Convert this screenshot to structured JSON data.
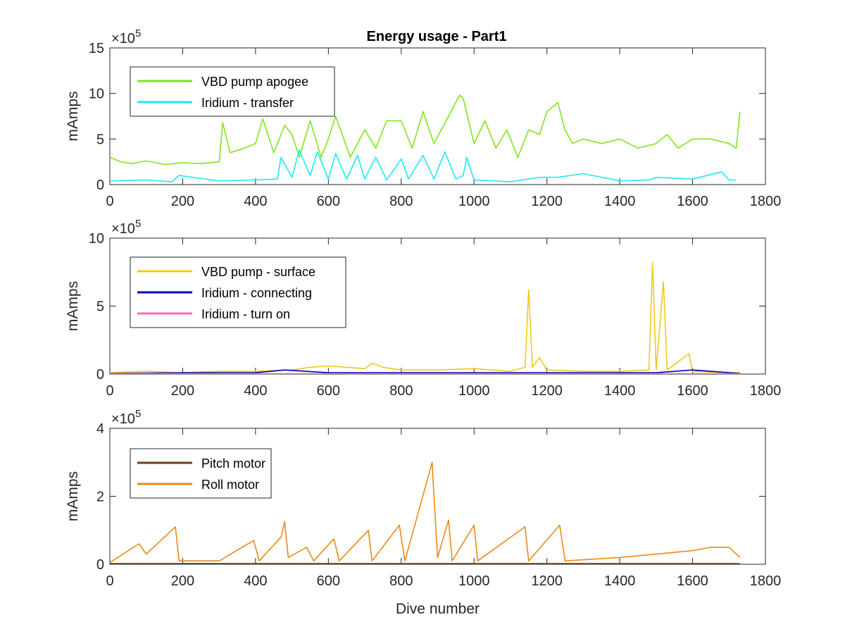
{
  "figure": {
    "title": "Energy usage - Part1"
  },
  "chart_data": [
    {
      "type": "line",
      "title": "Energy usage - Part1",
      "xlabel": "",
      "ylabel": "mAmps",
      "y_multiplier": "10",
      "y_exponent": "5",
      "xlim": [
        0,
        1800
      ],
      "ylim": [
        0,
        15
      ],
      "xticks": [
        "0",
        "200",
        "400",
        "600",
        "800",
        "1000",
        "1200",
        "1400",
        "1600",
        "1800"
      ],
      "yticks": [
        "0",
        "5",
        "10",
        "15"
      ],
      "legend": "top-left",
      "series": [
        {
          "name": "VBD pump apogee",
          "color": "#80e61a",
          "points": [
            [
              0,
              3.0
            ],
            [
              30,
              2.5
            ],
            [
              60,
              2.3
            ],
            [
              100,
              2.6
            ],
            [
              150,
              2.2
            ],
            [
              200,
              2.4
            ],
            [
              250,
              2.3
            ],
            [
              300,
              2.5
            ],
            [
              310,
              6.8
            ],
            [
              330,
              3.5
            ],
            [
              370,
              4.0
            ],
            [
              400,
              4.5
            ],
            [
              420,
              7.2
            ],
            [
              450,
              3.5
            ],
            [
              480,
              6.5
            ],
            [
              500,
              5.5
            ],
            [
              520,
              3.0
            ],
            [
              550,
              7.0
            ],
            [
              580,
              3.0
            ],
            [
              600,
              5.0
            ],
            [
              620,
              7.5
            ],
            [
              660,
              3.0
            ],
            [
              700,
              6.0
            ],
            [
              730,
              4.0
            ],
            [
              760,
              7.0
            ],
            [
              800,
              7.0
            ],
            [
              830,
              4.0
            ],
            [
              860,
              8.0
            ],
            [
              890,
              4.5
            ],
            [
              930,
              7.5
            ],
            [
              960,
              9.8
            ],
            [
              970,
              9.5
            ],
            [
              1000,
              4.5
            ],
            [
              1030,
              7.0
            ],
            [
              1060,
              4.0
            ],
            [
              1090,
              6.0
            ],
            [
              1120,
              3.0
            ],
            [
              1150,
              6.0
            ],
            [
              1180,
              5.5
            ],
            [
              1200,
              8.0
            ],
            [
              1230,
              9.0
            ],
            [
              1250,
              6.0
            ],
            [
              1270,
              4.5
            ],
            [
              1300,
              5.0
            ],
            [
              1350,
              4.5
            ],
            [
              1400,
              5.0
            ],
            [
              1450,
              4.0
            ],
            [
              1500,
              4.5
            ],
            [
              1530,
              5.5
            ],
            [
              1560,
              4.0
            ],
            [
              1600,
              5.0
            ],
            [
              1650,
              5.0
            ],
            [
              1700,
              4.5
            ],
            [
              1720,
              4.0
            ],
            [
              1730,
              8.0
            ]
          ]
        },
        {
          "name": "Iridium - transfer",
          "color": "#1aeaf2",
          "points": [
            [
              0,
              0.4
            ],
            [
              100,
              0.5
            ],
            [
              170,
              0.3
            ],
            [
              190,
              1.0
            ],
            [
              300,
              0.4
            ],
            [
              400,
              0.5
            ],
            [
              460,
              0.6
            ],
            [
              470,
              3.0
            ],
            [
              500,
              0.8
            ],
            [
              520,
              3.8
            ],
            [
              550,
              1.0
            ],
            [
              570,
              3.6
            ],
            [
              600,
              0.6
            ],
            [
              620,
              3.4
            ],
            [
              650,
              0.6
            ],
            [
              680,
              3.2
            ],
            [
              700,
              0.6
            ],
            [
              730,
              3.0
            ],
            [
              760,
              0.5
            ],
            [
              800,
              2.8
            ],
            [
              820,
              0.6
            ],
            [
              860,
              3.2
            ],
            [
              890,
              0.6
            ],
            [
              920,
              3.6
            ],
            [
              950,
              0.6
            ],
            [
              970,
              1.0
            ],
            [
              980,
              3.0
            ],
            [
              1000,
              0.5
            ],
            [
              1100,
              0.3
            ],
            [
              1180,
              0.8
            ],
            [
              1230,
              0.8
            ],
            [
              1300,
              1.2
            ],
            [
              1400,
              0.4
            ],
            [
              1480,
              0.5
            ],
            [
              1500,
              0.8
            ],
            [
              1600,
              0.6
            ],
            [
              1680,
              1.4
            ],
            [
              1700,
              0.5
            ],
            [
              1720,
              0.5
            ]
          ]
        }
      ]
    },
    {
      "type": "line",
      "title": "",
      "xlabel": "",
      "ylabel": "mAmps",
      "y_multiplier": "10",
      "y_exponent": "5",
      "xlim": [
        0,
        1800
      ],
      "ylim": [
        0,
        10
      ],
      "xticks": [
        "0",
        "200",
        "400",
        "600",
        "800",
        "1000",
        "1200",
        "1400",
        "1600",
        "1800"
      ],
      "yticks": [
        "0",
        "5",
        "10"
      ],
      "legend": "top-left",
      "series": [
        {
          "name": "VBD pump - surface",
          "color": "#f2c81a",
          "points": [
            [
              0,
              0.1
            ],
            [
              100,
              0.2
            ],
            [
              200,
              0.1
            ],
            [
              300,
              0.2
            ],
            [
              400,
              0.2
            ],
            [
              500,
              0.3
            ],
            [
              550,
              0.5
            ],
            [
              600,
              0.6
            ],
            [
              700,
              0.4
            ],
            [
              720,
              0.8
            ],
            [
              750,
              0.5
            ],
            [
              800,
              0.3
            ],
            [
              900,
              0.3
            ],
            [
              1000,
              0.4
            ],
            [
              1100,
              0.2
            ],
            [
              1140,
              0.5
            ],
            [
              1150,
              6.2
            ],
            [
              1160,
              0.5
            ],
            [
              1180,
              1.2
            ],
            [
              1200,
              0.3
            ],
            [
              1300,
              0.2
            ],
            [
              1400,
              0.2
            ],
            [
              1480,
              0.3
            ],
            [
              1490,
              8.2
            ],
            [
              1500,
              0.3
            ],
            [
              1520,
              6.8
            ],
            [
              1530,
              0.3
            ],
            [
              1590,
              1.5
            ],
            [
              1600,
              0.2
            ],
            [
              1700,
              0.1
            ],
            [
              1730,
              0.1
            ]
          ]
        },
        {
          "name": "Iridium - connecting",
          "color": "#0000b4",
          "points": [
            [
              0,
              0.05
            ],
            [
              200,
              0.1
            ],
            [
              400,
              0.1
            ],
            [
              480,
              0.3
            ],
            [
              600,
              0.1
            ],
            [
              800,
              0.1
            ],
            [
              1000,
              0.1
            ],
            [
              1200,
              0.1
            ],
            [
              1400,
              0.1
            ],
            [
              1500,
              0.1
            ],
            [
              1600,
              0.3
            ],
            [
              1730,
              0.05
            ]
          ]
        },
        {
          "name": "Iridium - turn on",
          "color": "#ee6eb4",
          "points": [
            [
              0,
              0.03
            ],
            [
              400,
              0.03
            ],
            [
              800,
              0.03
            ],
            [
              1200,
              0.03
            ],
            [
              1600,
              0.03
            ],
            [
              1730,
              0.03
            ]
          ]
        }
      ]
    },
    {
      "type": "line",
      "title": "",
      "xlabel": "Dive number",
      "ylabel": "mAmps",
      "y_multiplier": "10",
      "y_exponent": "5",
      "xlim": [
        0,
        1800
      ],
      "ylim": [
        0,
        4
      ],
      "xticks": [
        "0",
        "200",
        "400",
        "600",
        "800",
        "1000",
        "1200",
        "1400",
        "1600",
        "1800"
      ],
      "yticks": [
        "0",
        "2",
        "4"
      ],
      "legend": "top-left",
      "series": [
        {
          "name": "Pitch motor",
          "color": "#6e3c14",
          "points": [
            [
              0,
              0.02
            ],
            [
              400,
              0.02
            ],
            [
              800,
              0.02
            ],
            [
              1200,
              0.02
            ],
            [
              1600,
              0.02
            ],
            [
              1730,
              0.02
            ]
          ]
        },
        {
          "name": "Roll motor",
          "color": "#ea8a14",
          "points": [
            [
              0,
              0.05
            ],
            [
              80,
              0.6
            ],
            [
              100,
              0.3
            ],
            [
              180,
              1.1
            ],
            [
              190,
              0.1
            ],
            [
              300,
              0.1
            ],
            [
              395,
              0.7
            ],
            [
              410,
              0.1
            ],
            [
              470,
              0.8
            ],
            [
              480,
              1.25
            ],
            [
              490,
              0.2
            ],
            [
              540,
              0.5
            ],
            [
              560,
              0.1
            ],
            [
              615,
              0.75
            ],
            [
              630,
              0.1
            ],
            [
              710,
              1.0
            ],
            [
              720,
              0.1
            ],
            [
              795,
              1.15
            ],
            [
              810,
              0.1
            ],
            [
              885,
              3.0
            ],
            [
              890,
              2.0
            ],
            [
              900,
              0.2
            ],
            [
              930,
              1.3
            ],
            [
              940,
              0.1
            ],
            [
              1000,
              1.15
            ],
            [
              1010,
              0.1
            ],
            [
              1140,
              1.1
            ],
            [
              1150,
              0.1
            ],
            [
              1235,
              1.15
            ],
            [
              1250,
              0.1
            ],
            [
              1400,
              0.2
            ],
            [
              1600,
              0.4
            ],
            [
              1650,
              0.5
            ],
            [
              1700,
              0.5
            ],
            [
              1730,
              0.2
            ]
          ]
        }
      ]
    }
  ]
}
